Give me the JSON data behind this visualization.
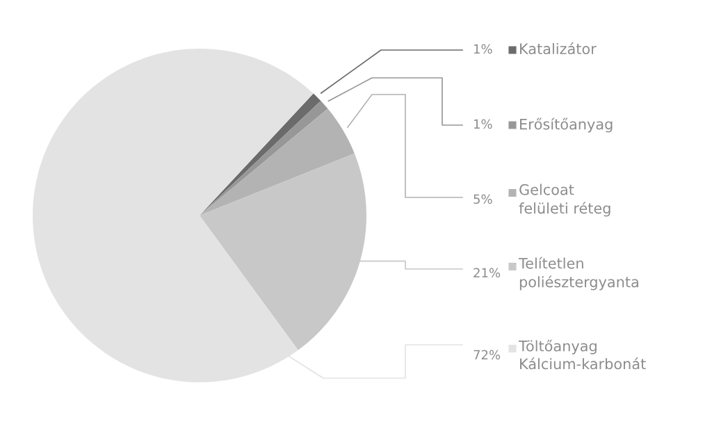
{
  "chart_data": {
    "type": "pie",
    "categories": [
      "Katalizátor",
      "Erősítőanyag",
      "Gelcoat\nfelületi réteg",
      "Telítetlen\npoliésztergyanta",
      "Töltőanyag\nKálcium-karbonát"
    ],
    "values": [
      1,
      1,
      5,
      21,
      72
    ],
    "value_labels": [
      "1%",
      "1%",
      "5%",
      "21%",
      "72%"
    ],
    "colors": [
      "#6b6b6b",
      "#979797",
      "#b3b3b3",
      "#c8c8c8",
      "#e3e3e3"
    ],
    "legend": "right"
  }
}
